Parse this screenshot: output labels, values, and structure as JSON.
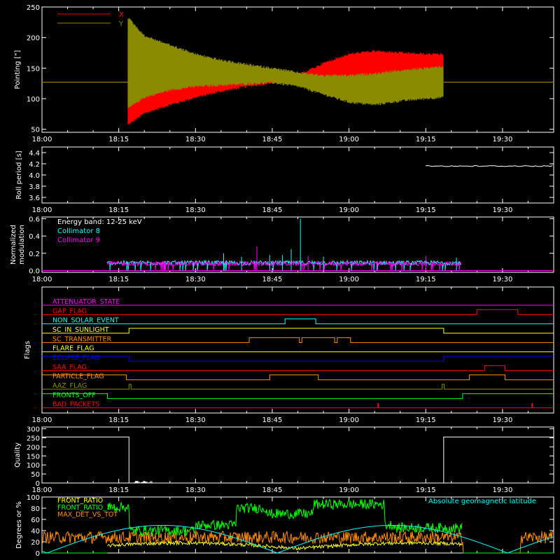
{
  "x_axis": {
    "ticks": [
      "18:00",
      "18:15",
      "18:30",
      "18:45",
      "19:00",
      "19:15",
      "19:30"
    ],
    "tick_minutes": [
      0,
      15,
      30,
      45,
      60,
      75,
      90
    ],
    "range_minutes": [
      0,
      100
    ]
  },
  "colors": {
    "background": "#000000",
    "axis": "#ffffff",
    "red": "#ff0000",
    "olive": "#8b8b00",
    "cyan": "#00ffff",
    "magenta": "#ff00ff",
    "green": "#00ff00",
    "orange": "#ff8c00",
    "yellow": "#ffff00",
    "blue": "#0000ff"
  },
  "chart_data": [
    {
      "id": "pointing",
      "type": "line",
      "ylabel": "Pointing [\"]",
      "ylim": [
        45,
        250
      ],
      "yticks": [
        50,
        100,
        150,
        200,
        250
      ],
      "legend": "top-left",
      "series": [
        {
          "name": "X",
          "color": "#ff0000",
          "baseline": 127,
          "start_minute": 16.8,
          "end_minute": 78.5,
          "envelope_x": [
            16.8,
            20,
            25,
            30,
            35,
            40,
            45,
            50,
            55,
            60,
            65,
            70,
            75,
            78.5
          ],
          "envelope_low": [
            55,
            74,
            88,
            100,
            110,
            118,
            124,
            128,
            120,
            112,
            112,
            118,
            124,
            128
          ],
          "envelope_high": [
            200,
            180,
            165,
            152,
            142,
            136,
            132,
            140,
            160,
            175,
            180,
            177,
            175,
            175
          ]
        },
        {
          "name": "Y",
          "color": "#8b8b00",
          "baseline": 127,
          "start_minute": 16.8,
          "end_minute": 78.5,
          "envelope_x": [
            16.8,
            20,
            25,
            30,
            35,
            40,
            45,
            50,
            55,
            60,
            65,
            70,
            75,
            78.5
          ],
          "envelope_low": [
            82,
            100,
            112,
            118,
            120,
            122,
            124,
            118,
            105,
            92,
            88,
            94,
            98,
            100
          ],
          "envelope_high": [
            235,
            205,
            190,
            175,
            165,
            158,
            152,
            145,
            140,
            140,
            143,
            148,
            152,
            155
          ]
        }
      ]
    },
    {
      "id": "roll",
      "type": "line",
      "ylabel": "Roll period [s]",
      "ylim": [
        3.5,
        4.5
      ],
      "yticks": [
        3.6,
        3.8,
        4.0,
        4.2,
        4.4
      ],
      "series": [
        {
          "name": "",
          "color": "#ffffff",
          "x": [
            75,
            100
          ],
          "values": [
            4.16,
            4.16
          ]
        }
      ]
    },
    {
      "id": "modulation",
      "type": "line",
      "ylabel": "Normalized",
      "ylabel2": "modulation",
      "ylim": [
        -0.02,
        0.62
      ],
      "yticks": [
        0.0,
        0.2,
        0.4,
        0.6
      ],
      "legend": "top-left",
      "annotation": "Energy band: 12-25 keV",
      "series": [
        {
          "name": "Collimator 8",
          "color": "#00ffff",
          "range_minutes": [
            12.7,
            82
          ],
          "typical": 0.09
        },
        {
          "name": "Collimator 9",
          "color": "#ff00ff",
          "range_minutes": [
            12.7,
            82
          ],
          "typical": 0.08
        }
      ],
      "spikes": [
        {
          "minute": 50.5,
          "value": 0.6,
          "color": "#00ffff"
        },
        {
          "minute": 48.7,
          "value": 0.25,
          "color": "#00ffff"
        },
        {
          "minute": 42.0,
          "value": 0.28,
          "color": "#ff00ff"
        },
        {
          "minute": 35.5,
          "value": 0.2,
          "color": "#00ffff"
        },
        {
          "minute": 44.5,
          "value": 0.18,
          "color": "#00ffff"
        },
        {
          "minute": 47.0,
          "value": 0.18,
          "color": "#00ffff"
        },
        {
          "minute": 52.0,
          "value": 0.17,
          "color": "#ff00ff"
        },
        {
          "minute": 39.0,
          "value": 0.16,
          "color": "#00ffff"
        },
        {
          "minute": 55.0,
          "value": 0.16,
          "color": "#00ffff"
        },
        {
          "minute": 75.0,
          "value": 0.17,
          "color": "#ff00ff"
        },
        {
          "minute": 81.0,
          "value": 0.15,
          "color": "#00ffff"
        }
      ]
    },
    {
      "id": "flags",
      "type": "table",
      "ylabel": "Flags",
      "flags": [
        {
          "name": "ATTENUATOR_STATE",
          "color": "#ff00ff",
          "steps": [
            [
              0,
              0
            ]
          ]
        },
        {
          "name": "GAP_FLAG",
          "color": "#ff0000",
          "steps": [
            [
              0,
              0
            ],
            [
              85,
              1
            ],
            [
              93,
              0
            ]
          ]
        },
        {
          "name": "NON_SOLAR_EVENT",
          "color": "#00ffff",
          "steps": [
            [
              0,
              0
            ],
            [
              47.5,
              1
            ],
            [
              53.5,
              0
            ]
          ]
        },
        {
          "name": "SC_IN_SUNLIGHT",
          "color": "#ffff00",
          "steps": [
            [
              0,
              0
            ],
            [
              17,
              1
            ],
            [
              78.5,
              0
            ]
          ]
        },
        {
          "name": "SC_TRANSMITTER",
          "color": "#ff8c00",
          "steps": [
            [
              0,
              0
            ],
            [
              40.5,
              1
            ],
            [
              50.3,
              0
            ],
            [
              50.8,
              1
            ],
            [
              57.2,
              0
            ],
            [
              57.7,
              1
            ],
            [
              60.3,
              0
            ]
          ]
        },
        {
          "name": "FLARE_FLAG",
          "color": "#ffff00",
          "steps": [
            [
              0,
              0
            ]
          ]
        },
        {
          "name": "ECLIPSE_FLAG",
          "color": "#0000ff",
          "steps": [
            [
              0,
              1
            ],
            [
              17,
              0
            ],
            [
              78.5,
              1
            ]
          ]
        },
        {
          "name": "SAA_FLAG",
          "color": "#ff0000",
          "steps": [
            [
              0,
              0
            ],
            [
              86.5,
              1
            ],
            [
              90.5,
              0
            ]
          ]
        },
        {
          "name": "PARTICLE_FLAG",
          "color": "#ff8c00",
          "steps": [
            [
              0,
              1
            ],
            [
              16.5,
              0
            ],
            [
              44.5,
              1
            ],
            [
              54,
              0
            ],
            [
              83.5,
              1
            ],
            [
              90.5,
              0
            ]
          ]
        },
        {
          "name": "AAZ_FLAG",
          "color": "#8b8b00",
          "steps": [
            [
              0,
              0
            ],
            [
              17.0,
              1
            ],
            [
              17.4,
              0
            ],
            [
              78.2,
              1
            ],
            [
              78.6,
              0
            ]
          ]
        },
        {
          "name": "FRONTS_OFF",
          "color": "#00ff00",
          "steps": [
            [
              0,
              1
            ],
            [
              12.8,
              0
            ],
            [
              82.2,
              1
            ]
          ]
        },
        {
          "name": "BAD_PACKETS",
          "color": "#ff0000",
          "steps": [
            [
              0,
              0
            ]
          ],
          "pulses": [
            65.7,
            95.8
          ]
        }
      ]
    },
    {
      "id": "quality",
      "type": "line",
      "ylabel": "Quality",
      "ylim": [
        0,
        310
      ],
      "yticks": [
        0,
        50,
        100,
        150,
        200,
        250,
        300
      ],
      "series": [
        {
          "name": "",
          "color": "#ffffff",
          "x": [
            0,
            17.0,
            17.0,
            78.5,
            78.5,
            100
          ],
          "values": [
            255,
            255,
            0,
            0,
            255,
            255
          ]
        }
      ],
      "noise_range": [
        18,
        21.5
      ]
    },
    {
      "id": "ratios",
      "type": "line",
      "ylabel": "Degrees or %",
      "ylim": [
        0,
        100
      ],
      "yticks": [
        0,
        20,
        40,
        60,
        80,
        100
      ],
      "legend": "top-left",
      "right_label": "Absolute geomagnetic latitude",
      "series": [
        {
          "name": "FRONT_RATIO",
          "color": "#ffff00"
        },
        {
          "name": "FRONT_RATIO_1",
          "color": "#00ff00",
          "segments": [
            [
              12.8,
              17,
              82
            ],
            [
              17,
              30,
              40
            ],
            [
              30,
              38,
              50
            ],
            [
              38,
              44,
              80
            ],
            [
              44,
              53,
              70
            ],
            [
              53,
              67,
              87
            ],
            [
              67,
              69,
              50
            ],
            [
              69,
              82.2,
              45
            ]
          ]
        },
        {
          "name": "MAX_DET_VS_TOT",
          "color": "#ff8c00"
        },
        {
          "name": "Absolute geomagnetic latitude",
          "color": "#00ffff",
          "wave": {
            "period": 45,
            "mean": 26,
            "amplitude": 25,
            "phase_minute": 1
          }
        }
      ]
    }
  ]
}
